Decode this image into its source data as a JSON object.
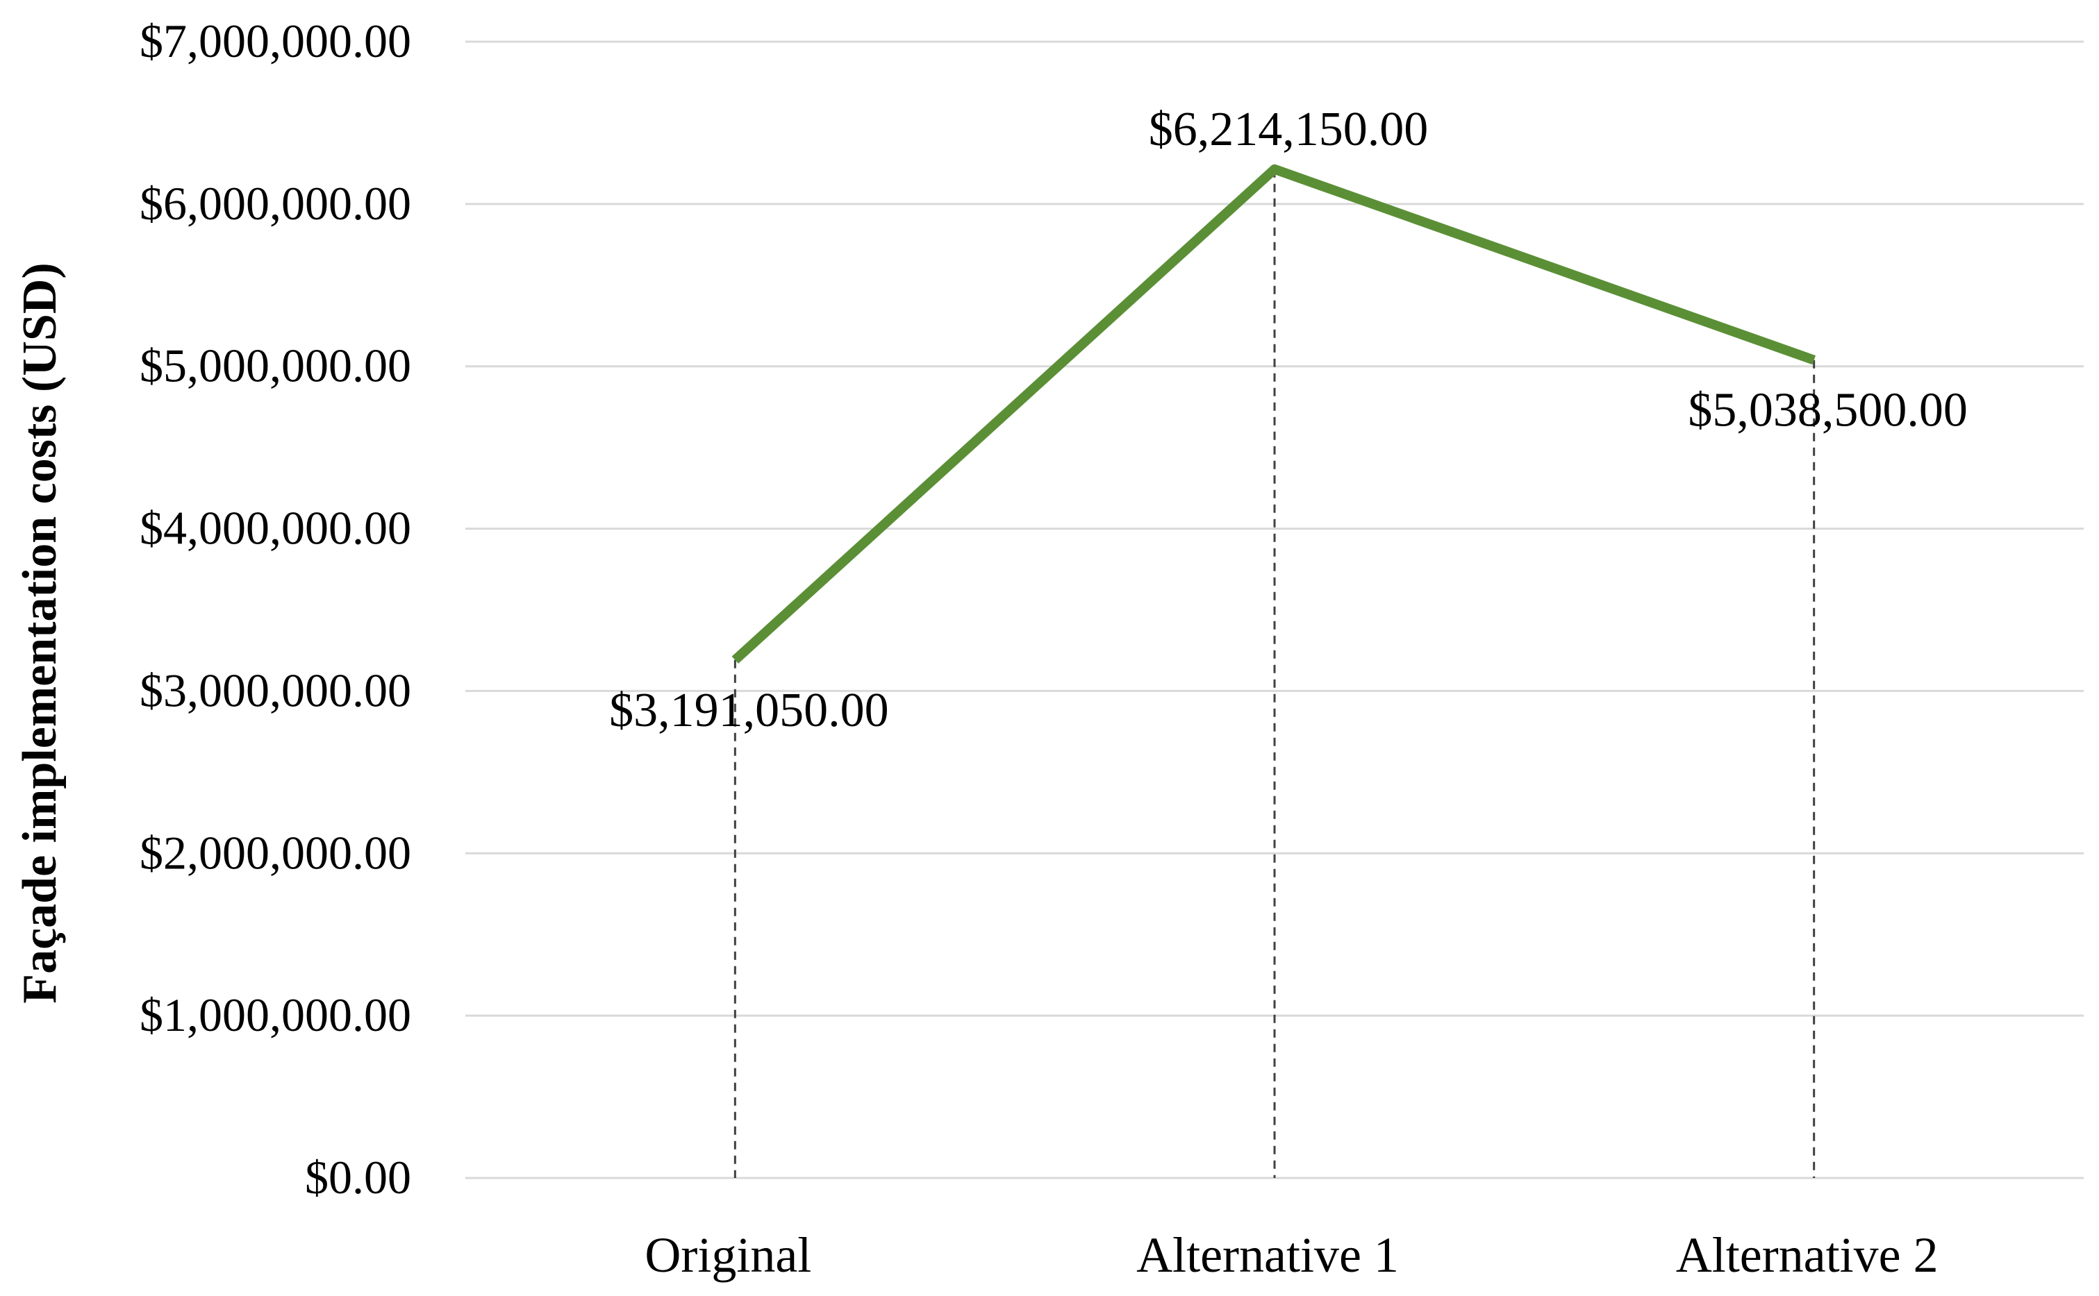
{
  "chart_data": {
    "type": "line",
    "title": "",
    "xlabel": "",
    "ylabel": "Façade implementation costs (USD)",
    "categories": [
      "Original",
      "Alternative 1",
      "Alternative 2"
    ],
    "series": [
      {
        "values": [
          3191050,
          6214150,
          5038500
        ],
        "labels": [
          "$3,191,050.00",
          "$6,214,150.00",
          "$5,038,500.00"
        ],
        "color": "#5b8f36"
      }
    ],
    "ylim": [
      0,
      7000000
    ],
    "yticks": [
      0,
      1000000,
      2000000,
      3000000,
      4000000,
      5000000,
      6000000,
      7000000
    ],
    "ytick_labels": [
      "$0.00",
      "$1,000,000.00",
      "$2,000,000.00",
      "$3,000,000.00",
      "$4,000,000.00",
      "$5,000,000.00",
      "$6,000,000.00",
      "$7,000,000.00"
    ],
    "grid": true,
    "legend": "none",
    "drop_lines": true
  }
}
